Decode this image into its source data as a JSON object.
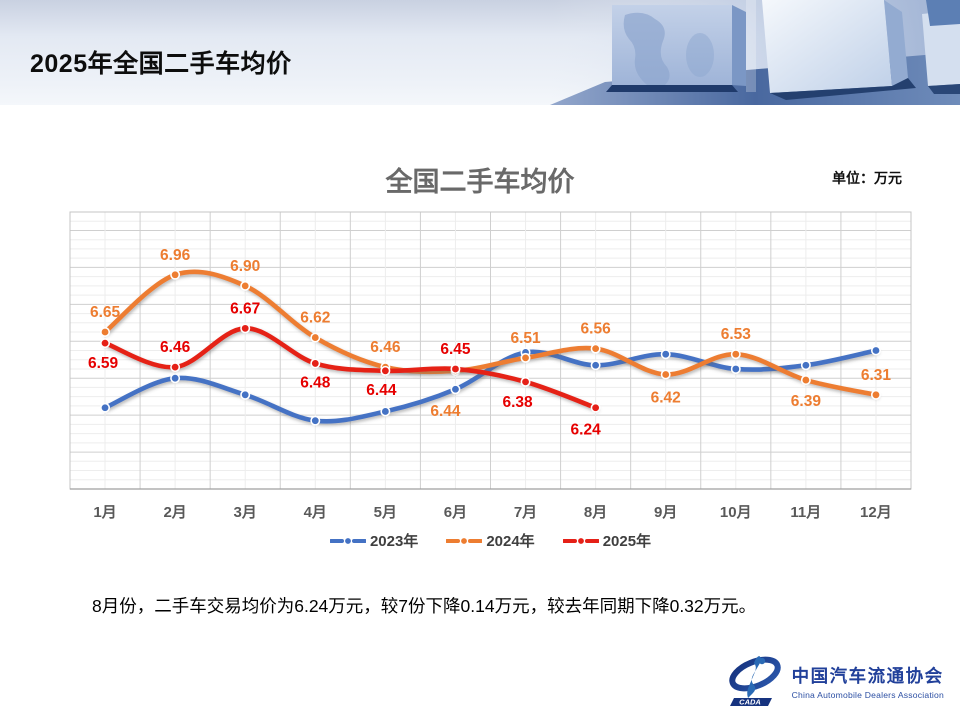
{
  "header": {
    "title": "2025年全国二手车均价"
  },
  "chart": {
    "title": "全国二手车均价",
    "unit_label": "单位：万元"
  },
  "chart_data": {
    "type": "line",
    "title": "全国二手车均价",
    "unit": "万元",
    "categories": [
      "1月",
      "2月",
      "3月",
      "4月",
      "5月",
      "6月",
      "7月",
      "8月",
      "9月",
      "10月",
      "11月",
      "12月"
    ],
    "series": [
      {
        "name": "2023年",
        "color": "#4472C4",
        "label_color": "#4472C4",
        "labels_visible": false,
        "values": [
          6.24,
          6.4,
          6.31,
          6.17,
          6.22,
          6.34,
          6.54,
          6.47,
          6.53,
          6.45,
          6.47,
          6.55
        ]
      },
      {
        "name": "2024年",
        "color": "#ED7D31",
        "label_color": "#ED7D31",
        "labels_visible": true,
        "values": [
          6.65,
          6.96,
          6.9,
          6.62,
          6.46,
          6.44,
          6.51,
          6.56,
          6.42,
          6.53,
          6.39,
          6.31
        ]
      },
      {
        "name": "2025年",
        "color": "#E52017",
        "label_color": "#E60000",
        "labels_visible": true,
        "values": [
          6.59,
          6.46,
          6.67,
          6.48,
          6.44,
          6.45,
          6.38,
          6.24
        ]
      }
    ],
    "ylim": [
      5.8,
      7.3
    ],
    "grid": true,
    "legend_position": "bottom"
  },
  "footer": {
    "summary": "8月份，二手车交易均价为6.24万元，较7份下降0.14万元，较去年同期下降0.32万元。"
  },
  "logo": {
    "org_cn": "中国汽车流通协会",
    "org_en": "China Automobile Dealers Association",
    "badge": "CADA"
  }
}
